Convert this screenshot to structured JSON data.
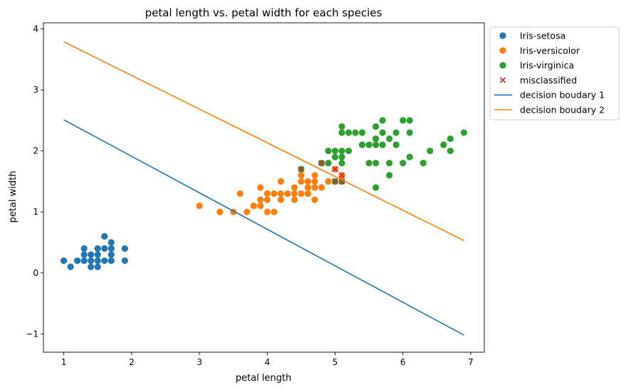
{
  "chart_data": {
    "type": "scatter",
    "title": "petal length vs. petal width for each species",
    "xlabel": "petal length",
    "ylabel": "petal width",
    "xlim": [
      0.7,
      7.2
    ],
    "ylim": [
      -1.3,
      4.1
    ],
    "xticks": [
      1,
      2,
      3,
      4,
      5,
      6,
      7
    ],
    "yticks": [
      -1,
      0,
      1,
      2,
      3,
      4
    ],
    "xtick_labels": [
      "1",
      "2",
      "3",
      "4",
      "5",
      "6",
      "7"
    ],
    "ytick_labels": [
      "−1",
      "0",
      "1",
      "2",
      "3",
      "4"
    ],
    "grid": false,
    "legend_position": "outside-top-right",
    "series": [
      {
        "name": "Iris-setosa",
        "kind": "scatter",
        "marker": "circle",
        "color": "#1f77b4",
        "points": [
          [
            1.0,
            0.2
          ],
          [
            1.1,
            0.1
          ],
          [
            1.2,
            0.2
          ],
          [
            1.3,
            0.2
          ],
          [
            1.3,
            0.3
          ],
          [
            1.3,
            0.4
          ],
          [
            1.4,
            0.1
          ],
          [
            1.4,
            0.2
          ],
          [
            1.4,
            0.3
          ],
          [
            1.5,
            0.1
          ],
          [
            1.5,
            0.2
          ],
          [
            1.5,
            0.3
          ],
          [
            1.5,
            0.4
          ],
          [
            1.6,
            0.2
          ],
          [
            1.6,
            0.4
          ],
          [
            1.6,
            0.6
          ],
          [
            1.7,
            0.2
          ],
          [
            1.7,
            0.3
          ],
          [
            1.7,
            0.4
          ],
          [
            1.7,
            0.5
          ],
          [
            1.9,
            0.2
          ],
          [
            1.9,
            0.4
          ]
        ]
      },
      {
        "name": "Iris-versicolor",
        "kind": "scatter",
        "marker": "circle",
        "color": "#ff7f0e",
        "points": [
          [
            3.0,
            1.1
          ],
          [
            3.3,
            1.0
          ],
          [
            3.5,
            1.0
          ],
          [
            3.6,
            1.3
          ],
          [
            3.7,
            1.0
          ],
          [
            3.8,
            1.1
          ],
          [
            3.9,
            1.1
          ],
          [
            3.9,
            1.2
          ],
          [
            3.9,
            1.4
          ],
          [
            4.0,
            1.0
          ],
          [
            4.0,
            1.2
          ],
          [
            4.0,
            1.3
          ],
          [
            4.1,
            1.0
          ],
          [
            4.1,
            1.3
          ],
          [
            4.2,
            1.2
          ],
          [
            4.2,
            1.3
          ],
          [
            4.2,
            1.5
          ],
          [
            4.3,
            1.3
          ],
          [
            4.4,
            1.2
          ],
          [
            4.4,
            1.3
          ],
          [
            4.4,
            1.4
          ],
          [
            4.5,
            1.3
          ],
          [
            4.5,
            1.5
          ],
          [
            4.5,
            1.6
          ],
          [
            4.6,
            1.3
          ],
          [
            4.6,
            1.4
          ],
          [
            4.6,
            1.5
          ],
          [
            4.7,
            1.2
          ],
          [
            4.7,
            1.4
          ],
          [
            4.7,
            1.5
          ],
          [
            4.7,
            1.6
          ],
          [
            4.8,
            1.4
          ],
          [
            4.8,
            1.8
          ],
          [
            4.9,
            1.5
          ],
          [
            5.0,
            1.7
          ],
          [
            5.1,
            1.6
          ]
        ]
      },
      {
        "name": "Iris-virginica",
        "kind": "scatter",
        "marker": "circle",
        "color": "#2ca02c",
        "points": [
          [
            4.5,
            1.7
          ],
          [
            4.8,
            1.8
          ],
          [
            4.9,
            1.8
          ],
          [
            4.9,
            2.0
          ],
          [
            5.0,
            1.5
          ],
          [
            5.0,
            1.9
          ],
          [
            5.0,
            2.0
          ],
          [
            5.1,
            1.5
          ],
          [
            5.1,
            1.8
          ],
          [
            5.1,
            1.9
          ],
          [
            5.1,
            2.0
          ],
          [
            5.1,
            2.3
          ],
          [
            5.1,
            2.4
          ],
          [
            5.2,
            2.0
          ],
          [
            5.2,
            2.3
          ],
          [
            5.3,
            2.3
          ],
          [
            5.4,
            2.1
          ],
          [
            5.4,
            2.3
          ],
          [
            5.5,
            1.8
          ],
          [
            5.5,
            2.1
          ],
          [
            5.6,
            1.4
          ],
          [
            5.6,
            1.8
          ],
          [
            5.6,
            2.1
          ],
          [
            5.6,
            2.2
          ],
          [
            5.6,
            2.4
          ],
          [
            5.7,
            2.1
          ],
          [
            5.7,
            2.3
          ],
          [
            5.7,
            2.5
          ],
          [
            5.8,
            1.6
          ],
          [
            5.8,
            1.8
          ],
          [
            5.8,
            2.2
          ],
          [
            5.9,
            2.1
          ],
          [
            5.9,
            2.3
          ],
          [
            6.0,
            1.8
          ],
          [
            6.0,
            2.5
          ],
          [
            6.1,
            1.9
          ],
          [
            6.1,
            2.3
          ],
          [
            6.1,
            2.5
          ],
          [
            6.3,
            1.8
          ],
          [
            6.4,
            2.0
          ],
          [
            6.6,
            2.1
          ],
          [
            6.7,
            2.0
          ],
          [
            6.7,
            2.2
          ],
          [
            6.9,
            2.3
          ]
        ]
      },
      {
        "name": "misclassified",
        "kind": "scatter",
        "marker": "x",
        "color": "#d62728",
        "points": [
          [
            4.5,
            1.7
          ],
          [
            4.8,
            1.8
          ],
          [
            5.0,
            1.5
          ],
          [
            5.0,
            1.7
          ],
          [
            5.1,
            1.5
          ],
          [
            5.1,
            1.6
          ]
        ]
      },
      {
        "name": "decision boudary 1",
        "kind": "line",
        "color": "#1f77b4",
        "points": [
          [
            1.0,
            2.51
          ],
          [
            6.9,
            -1.02
          ]
        ]
      },
      {
        "name": "decision boudary 2",
        "kind": "line",
        "color": "#ff7f0e",
        "points": [
          [
            1.0,
            3.79
          ],
          [
            6.9,
            0.53
          ]
        ]
      }
    ]
  }
}
